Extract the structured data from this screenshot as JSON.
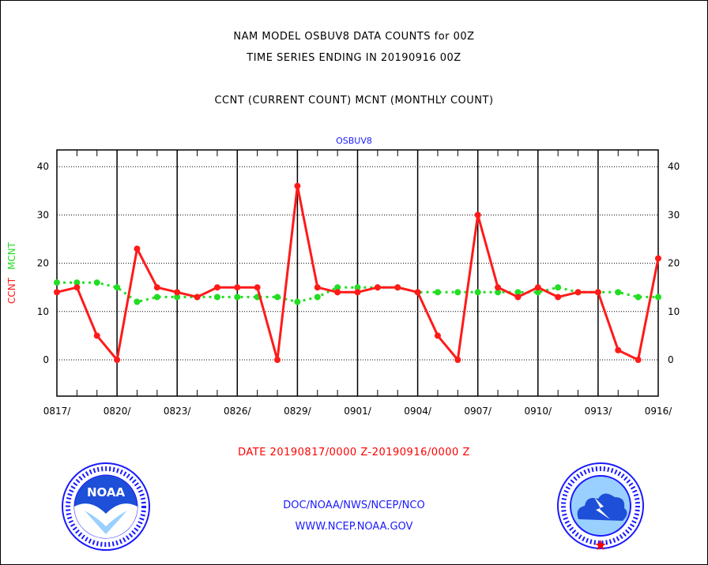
{
  "header": {
    "title1": "NAM MODEL OSBUV8 DATA COUNTS for 00Z",
    "title2": "TIME SERIES ENDING IN 20190916 00Z",
    "title3": "CCNT (CURRENT COUNT) MCNT (MONTHLY COUNT)",
    "station": "OSBUV8"
  },
  "footer": {
    "date_range": "DATE 20190817/0000 Z-20190916/0000 Z",
    "org": "DOC/NOAA/NWS/NCEP/NCO",
    "url": "WWW.NCEP.NOAA.GOV"
  },
  "logos": {
    "left_text": "NOAA",
    "left_ring": "NATIONAL OCEANIC AND ATMOSPHERIC ADMINISTRATION · U.S. DEPARTMENT OF COMMERCE",
    "right_ring": "NATIONAL WEATHER SERVICE"
  },
  "colors": {
    "ccnt": "#ff1a1a",
    "mcnt": "#22dd22",
    "blue": "#1a1aff"
  },
  "chart_data": {
    "type": "line",
    "ylabel_parts": [
      "CCNT",
      "MCNT"
    ],
    "ylim": [
      -7.5,
      43
    ],
    "yticks": [
      0,
      10,
      20,
      30,
      40
    ],
    "xtick_labels": [
      "0817/",
      "0820/",
      "0823/",
      "0826/",
      "0829/",
      "0901/",
      "0904/",
      "0907/",
      "0910/",
      "0913/",
      "0916/"
    ],
    "grid": true,
    "series": [
      {
        "name": "CCNT",
        "values": [
          14,
          15,
          5,
          0,
          23,
          15,
          14,
          13,
          15,
          15,
          15,
          0,
          36,
          15,
          14,
          14,
          15,
          15,
          14,
          5,
          0,
          30,
          15,
          13,
          15,
          13,
          14,
          14,
          2,
          0,
          21
        ]
      },
      {
        "name": "MCNT",
        "values": [
          16,
          16,
          16,
          15,
          12,
          13,
          13,
          13,
          13,
          13,
          13,
          13,
          12,
          13,
          15,
          15,
          15,
          15,
          14,
          14,
          14,
          14,
          14,
          14,
          14,
          15,
          14,
          14,
          14,
          13,
          13
        ]
      }
    ]
  }
}
